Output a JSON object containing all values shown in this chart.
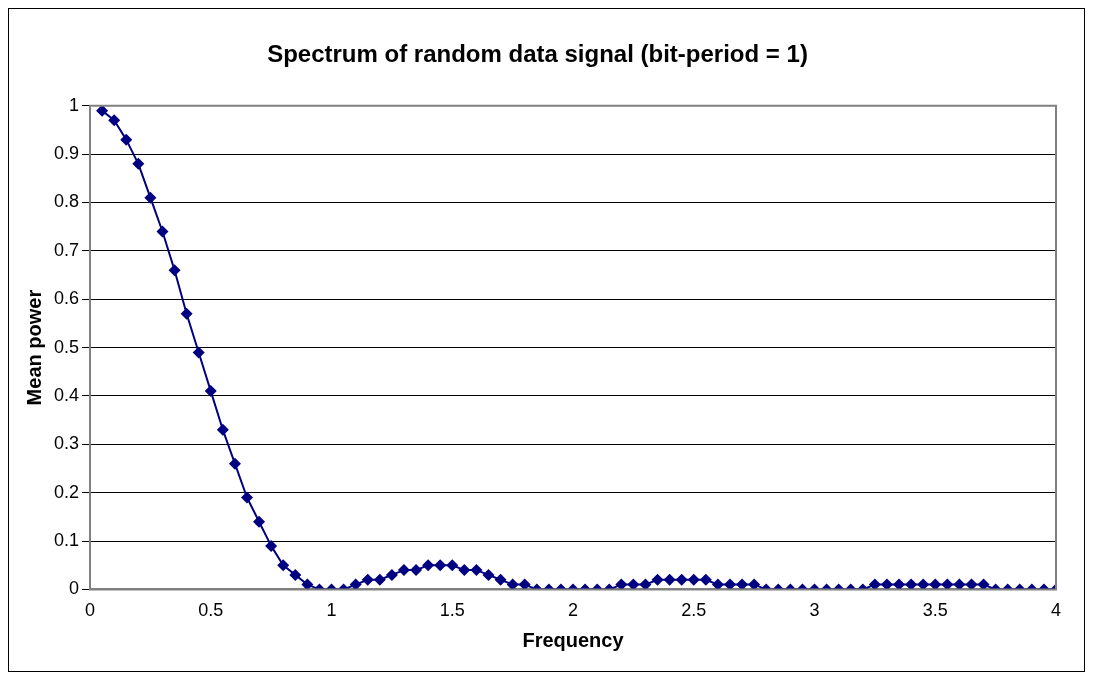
{
  "chart_data": {
    "type": "line",
    "title": "Spectrum of random data signal (bit-period = 1)",
    "xlabel": "Frequency",
    "ylabel": "Mean power",
    "x": [
      0.05,
      0.1,
      0.15,
      0.2,
      0.25,
      0.3,
      0.35,
      0.4,
      0.45,
      0.5,
      0.55,
      0.6,
      0.65,
      0.7,
      0.75,
      0.8,
      0.85,
      0.9,
      0.95,
      1.0,
      1.05,
      1.1,
      1.15,
      1.2,
      1.25,
      1.3,
      1.35,
      1.4,
      1.45,
      1.5,
      1.55,
      1.6,
      1.65,
      1.7,
      1.75,
      1.8,
      1.85,
      1.9,
      1.95,
      2.0,
      2.05,
      2.1,
      2.15,
      2.2,
      2.25,
      2.3,
      2.35,
      2.4,
      2.45,
      2.5,
      2.55,
      2.6,
      2.65,
      2.7,
      2.75,
      2.8,
      2.85,
      2.9,
      2.95,
      3.0,
      3.05,
      3.1,
      3.15,
      3.2,
      3.25,
      3.3,
      3.35,
      3.4,
      3.45,
      3.5,
      3.55,
      3.6,
      3.65,
      3.7,
      3.75,
      3.8,
      3.85,
      3.9,
      3.95,
      4.0
    ],
    "series": [
      {
        "color": "#000080",
        "values": [
          0.99,
          0.97,
          0.93,
          0.88,
          0.81,
          0.74,
          0.66,
          0.57,
          0.49,
          0.41,
          0.33,
          0.26,
          0.19,
          0.14,
          0.09,
          0.05,
          0.03,
          0.01,
          0.0,
          0.0,
          0.0,
          0.01,
          0.02,
          0.02,
          0.03,
          0.04,
          0.04,
          0.05,
          0.05,
          0.05,
          0.04,
          0.04,
          0.03,
          0.02,
          0.01,
          0.01,
          0.0,
          0.0,
          0.0,
          0.0,
          0.0,
          0.0,
          0.0,
          0.01,
          0.01,
          0.01,
          0.02,
          0.02,
          0.02,
          0.02,
          0.02,
          0.01,
          0.01,
          0.01,
          0.01,
          0.0,
          0.0,
          0.0,
          0.0,
          0.0,
          0.0,
          0.0,
          0.0,
          0.0,
          0.01,
          0.01,
          0.01,
          0.01,
          0.01,
          0.01,
          0.01,
          0.01,
          0.01,
          0.01,
          0.0,
          0.0,
          0.0,
          0.0,
          0.0,
          0.0
        ]
      }
    ],
    "xlim": [
      0,
      4
    ],
    "xticks": [
      0,
      0.5,
      1,
      1.5,
      2,
      2.5,
      3,
      3.5,
      4
    ],
    "ylim": [
      0,
      1
    ],
    "yticks": [
      0,
      0.1,
      0.2,
      0.3,
      0.4,
      0.5,
      0.6,
      0.7,
      0.8,
      0.9,
      1
    ],
    "grid": "y",
    "legend": false,
    "marker": "diamond",
    "line_style": "solid"
  }
}
